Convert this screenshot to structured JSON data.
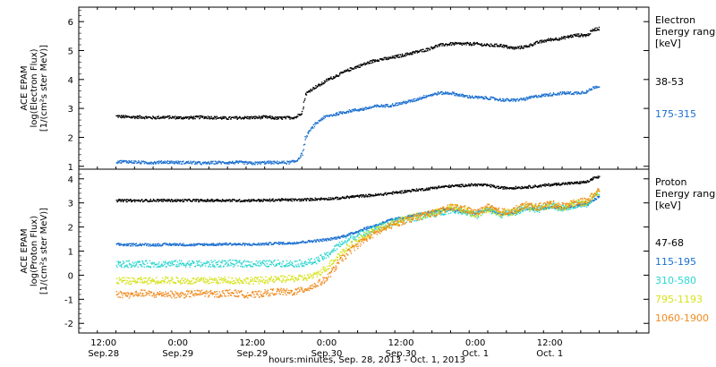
{
  "chart_data": [
    {
      "type": "scatter",
      "panel": "electron",
      "ylabel_lines": [
        "ACE EPAM",
        "log(Electron Flux)",
        "[1/(cm²s ster MeV)]"
      ],
      "ylim": [
        0.9,
        6.5
      ],
      "yticks": [
        1,
        2,
        3,
        4,
        5,
        6
      ],
      "legend_title": [
        "Electron",
        "Energy ranges",
        "[keV]"
      ],
      "series": [
        {
          "name": "38-53",
          "color": "#000000",
          "x": [
            6,
            8,
            10,
            12,
            14,
            16,
            18,
            20,
            22,
            24,
            26,
            28,
            30,
            32,
            34,
            35,
            36,
            36.5,
            37,
            38,
            39,
            40,
            42,
            44,
            46,
            48,
            50,
            52,
            54,
            56,
            58,
            60,
            62,
            64,
            66,
            68,
            70,
            72,
            74,
            76,
            78,
            80,
            82,
            83,
            84
          ],
          "y": [
            2.75,
            2.72,
            2.72,
            2.7,
            2.72,
            2.7,
            2.7,
            2.72,
            2.7,
            2.68,
            2.7,
            2.7,
            2.72,
            2.68,
            2.7,
            2.72,
            2.9,
            3.5,
            3.6,
            3.75,
            3.85,
            4.0,
            4.2,
            4.4,
            4.55,
            4.7,
            4.75,
            4.85,
            4.95,
            5.05,
            5.2,
            5.25,
            5.25,
            5.25,
            5.2,
            5.2,
            5.1,
            5.15,
            5.3,
            5.4,
            5.45,
            5.55,
            5.55,
            5.75,
            5.78
          ]
        },
        {
          "name": "175-315",
          "color": "#1a6fd0",
          "x": [
            6,
            8,
            10,
            12,
            14,
            16,
            18,
            20,
            22,
            24,
            26,
            28,
            30,
            32,
            34,
            35,
            36,
            36.5,
            37,
            38,
            39,
            40,
            42,
            44,
            46,
            48,
            50,
            52,
            54,
            56,
            58,
            60,
            62,
            64,
            66,
            68,
            70,
            72,
            74,
            76,
            78,
            80,
            82,
            83,
            84
          ],
          "y": [
            1.18,
            1.18,
            1.15,
            1.15,
            1.17,
            1.15,
            1.15,
            1.12,
            1.15,
            1.15,
            1.15,
            1.12,
            1.15,
            1.15,
            1.15,
            1.2,
            1.45,
            2.0,
            2.2,
            2.45,
            2.65,
            2.75,
            2.85,
            2.95,
            3.0,
            3.1,
            3.12,
            3.2,
            3.3,
            3.45,
            3.55,
            3.55,
            3.45,
            3.4,
            3.38,
            3.32,
            3.3,
            3.35,
            3.45,
            3.5,
            3.55,
            3.55,
            3.6,
            3.75,
            3.8
          ]
        }
      ]
    },
    {
      "type": "scatter",
      "panel": "proton",
      "ylabel_lines": [
        "ACE EPAM",
        "log(Proton Flux)",
        "[1/(cm²s ster MeV)]"
      ],
      "ylim": [
        -2.4,
        4.4
      ],
      "yticks": [
        -2,
        -1,
        0,
        1,
        2,
        3,
        4
      ],
      "legend_title": [
        "Proton",
        "Energy ranges",
        "[keV]"
      ],
      "series": [
        {
          "name": "47-68",
          "color": "#000000",
          "x": [
            6,
            8,
            10,
            12,
            14,
            16,
            18,
            20,
            22,
            24,
            26,
            28,
            30,
            32,
            34,
            36,
            38,
            40,
            42,
            44,
            46,
            48,
            50,
            52,
            54,
            56,
            58,
            60,
            62,
            64,
            66,
            68,
            70,
            72,
            74,
            76,
            78,
            80,
            82,
            83,
            84
          ],
          "y": [
            3.12,
            3.12,
            3.12,
            3.13,
            3.13,
            3.12,
            3.13,
            3.12,
            3.13,
            3.13,
            3.12,
            3.13,
            3.13,
            3.15,
            3.15,
            3.15,
            3.18,
            3.2,
            3.22,
            3.28,
            3.32,
            3.35,
            3.42,
            3.48,
            3.55,
            3.6,
            3.68,
            3.72,
            3.75,
            3.78,
            3.75,
            3.65,
            3.65,
            3.68,
            3.72,
            3.78,
            3.82,
            3.85,
            3.9,
            4.05,
            4.1
          ]
        },
        {
          "name": "115-195",
          "color": "#1a6fd0",
          "x": [
            6,
            8,
            10,
            12,
            14,
            16,
            18,
            20,
            22,
            24,
            26,
            28,
            30,
            32,
            34,
            36,
            38,
            40,
            42,
            44,
            46,
            48,
            50,
            52,
            54,
            56,
            58,
            60,
            62,
            64,
            66,
            68,
            70,
            72,
            74,
            76,
            78,
            80,
            82,
            83,
            84
          ],
          "y": [
            1.3,
            1.28,
            1.3,
            1.28,
            1.3,
            1.3,
            1.28,
            1.3,
            1.3,
            1.32,
            1.3,
            1.3,
            1.32,
            1.35,
            1.35,
            1.4,
            1.45,
            1.5,
            1.6,
            1.75,
            1.95,
            2.1,
            2.3,
            2.4,
            2.5,
            2.6,
            2.7,
            2.75,
            2.65,
            2.6,
            2.75,
            2.55,
            2.6,
            2.8,
            2.75,
            2.85,
            2.8,
            2.9,
            2.95,
            3.15,
            3.3
          ]
        },
        {
          "name": "310-580",
          "color": "#2ad6d0",
          "x": [
            6,
            8,
            10,
            12,
            14,
            16,
            18,
            20,
            22,
            24,
            26,
            28,
            30,
            32,
            34,
            36,
            38,
            40,
            42,
            44,
            46,
            48,
            50,
            52,
            54,
            56,
            58,
            60,
            62,
            64,
            66,
            68,
            70,
            72,
            74,
            76,
            78,
            80,
            82,
            83,
            84
          ],
          "y": [
            0.48,
            0.48,
            0.5,
            0.48,
            0.5,
            0.5,
            0.5,
            0.48,
            0.5,
            0.52,
            0.5,
            0.5,
            0.5,
            0.52,
            0.5,
            0.52,
            0.6,
            0.85,
            1.3,
            1.55,
            1.8,
            2.0,
            2.15,
            2.3,
            2.4,
            2.5,
            2.6,
            2.75,
            2.7,
            2.5,
            2.75,
            2.55,
            2.6,
            2.85,
            2.75,
            2.9,
            2.8,
            2.95,
            3.0,
            3.3,
            3.45
          ]
        },
        {
          "name": "795-1193",
          "color": "#d6e21a",
          "x": [
            6,
            8,
            10,
            12,
            14,
            16,
            18,
            20,
            22,
            24,
            26,
            28,
            30,
            32,
            34,
            36,
            38,
            40,
            42,
            44,
            46,
            48,
            50,
            52,
            54,
            56,
            58,
            60,
            62,
            64,
            66,
            68,
            70,
            72,
            74,
            76,
            78,
            80,
            82,
            83,
            84
          ],
          "y": [
            -0.2,
            -0.22,
            -0.2,
            -0.2,
            -0.18,
            -0.2,
            -0.22,
            -0.2,
            -0.2,
            -0.18,
            -0.2,
            -0.2,
            -0.18,
            -0.15,
            -0.12,
            -0.1,
            0.0,
            0.35,
            0.9,
            1.3,
            1.65,
            1.9,
            2.1,
            2.3,
            2.45,
            2.55,
            2.65,
            2.85,
            2.75,
            2.55,
            2.8,
            2.6,
            2.65,
            2.9,
            2.8,
            2.95,
            2.85,
            3.0,
            3.05,
            3.35,
            3.5
          ]
        },
        {
          "name": "1060-1900",
          "color": "#f08a1e",
          "x": [
            6,
            8,
            10,
            12,
            14,
            16,
            18,
            20,
            22,
            24,
            26,
            28,
            30,
            32,
            34,
            36,
            38,
            40,
            42,
            44,
            46,
            48,
            50,
            52,
            54,
            56,
            58,
            60,
            62,
            64,
            66,
            68,
            70,
            72,
            74,
            76,
            78,
            80,
            82,
            83,
            84
          ],
          "y": [
            -0.75,
            -0.8,
            -0.72,
            -0.78,
            -0.75,
            -0.8,
            -0.75,
            -0.72,
            -0.78,
            -0.7,
            -0.75,
            -0.8,
            -0.72,
            -0.65,
            -0.7,
            -0.6,
            -0.4,
            -0.1,
            0.6,
            1.1,
            1.5,
            1.8,
            2.05,
            2.25,
            2.4,
            2.55,
            2.65,
            2.85,
            2.8,
            2.6,
            2.85,
            2.65,
            2.7,
            2.95,
            2.85,
            3.0,
            2.9,
            3.05,
            3.1,
            3.4,
            3.55
          ]
        }
      ]
    }
  ],
  "xaxis": {
    "range_hours": [
      0,
      92
    ],
    "ticks": [
      {
        "h": 4,
        "line1": "12:00",
        "line2": "Sep.28"
      },
      {
        "h": 16,
        "line1": "0:00",
        "line2": "Sep.29"
      },
      {
        "h": 28,
        "line1": "12:00",
        "line2": "Sep.29"
      },
      {
        "h": 40,
        "line1": "0:00",
        "line2": "Sep.30"
      },
      {
        "h": 52,
        "line1": "12:00",
        "line2": "Sep.30"
      },
      {
        "h": 64,
        "line1": "0:00",
        "line2": "Oct. 1"
      },
      {
        "h": 76,
        "line1": "12:00",
        "line2": "Oct. 1"
      }
    ],
    "label": "hours:minutes, Sep. 28, 2013 - Oct.  1, 2013"
  }
}
